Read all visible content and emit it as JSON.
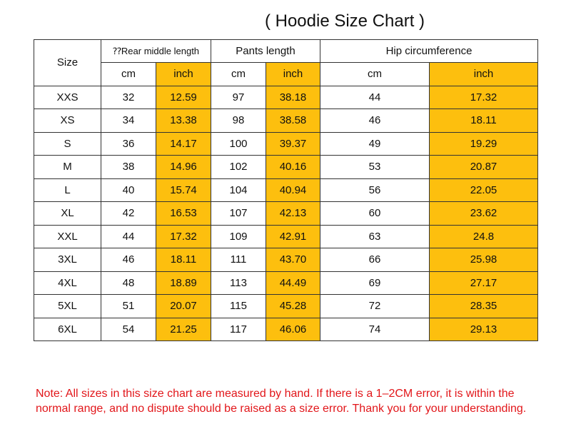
{
  "title": "( Hoodie Size Chart )",
  "header": {
    "size": "Size",
    "groups": [
      "⁇Rear middle length",
      "Pants length",
      "Hip circumference"
    ],
    "units": [
      "cm",
      "inch",
      "cm",
      "inch",
      "cm",
      "inch"
    ]
  },
  "highlight_color": "#fdbf0e",
  "note_color": "#e2161a",
  "rows": [
    [
      "XXS",
      "32",
      "12.59",
      "97",
      "38.18",
      "44",
      "17.32"
    ],
    [
      "XS",
      "34",
      "13.38",
      "98",
      "38.58",
      "46",
      "18.11"
    ],
    [
      "S",
      "36",
      "14.17",
      "100",
      "39.37",
      "49",
      "19.29"
    ],
    [
      "M",
      "38",
      "14.96",
      "102",
      "40.16",
      "53",
      "20.87"
    ],
    [
      "L",
      "40",
      "15.74",
      "104",
      "40.94",
      "56",
      "22.05"
    ],
    [
      "XL",
      "42",
      "16.53",
      "107",
      "42.13",
      "60",
      "23.62"
    ],
    [
      "XXL",
      "44",
      "17.32",
      "109",
      "42.91",
      "63",
      "24.8"
    ],
    [
      "3XL",
      "46",
      "18.11",
      "111",
      "43.70",
      "66",
      "25.98"
    ],
    [
      "4XL",
      "48",
      "18.89",
      "113",
      "44.49",
      "69",
      "27.17"
    ],
    [
      "5XL",
      "51",
      "20.07",
      "115",
      "45.28",
      "72",
      "28.35"
    ],
    [
      "6XL",
      "54",
      "21.25",
      "117",
      "46.06",
      "74",
      "29.13"
    ]
  ],
  "note": "Note: All sizes in this size chart are measured by hand. If there is a 1–2CM error, it is within the normal range, and no dispute should be raised as a size error. Thank you for your understanding."
}
